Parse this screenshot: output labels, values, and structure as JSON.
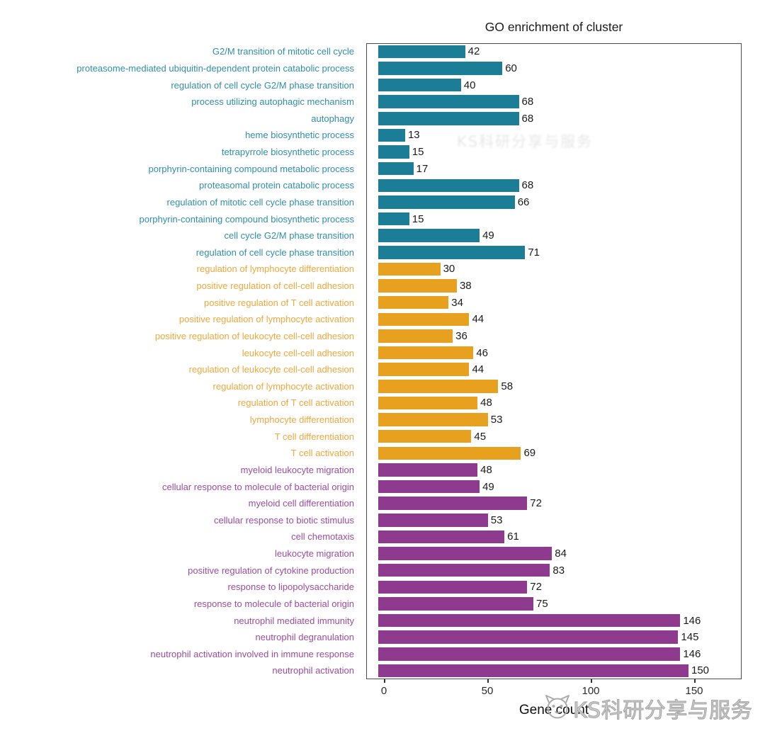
{
  "chart_data": {
    "type": "bar",
    "orientation": "horizontal",
    "title": "GO enrichment of cluster",
    "xlabel": "Gene count",
    "xlim": [
      0,
      165
    ],
    "xticks": [
      0,
      50,
      100,
      150
    ],
    "grid": false,
    "legend": "none",
    "cluster_colors": {
      "teal": {
        "bar": "#1b7e96",
        "label": "#2f8fa9"
      },
      "orange": {
        "bar": "#e7a11e",
        "label": "#f0a73c"
      },
      "purple": {
        "bar": "#8e3a8e",
        "label": "#9d4b9f"
      }
    },
    "items": [
      {
        "label": "G2/M transition of mitotic cell cycle",
        "value": 42,
        "cluster": "teal"
      },
      {
        "label": "proteasome-mediated ubiquitin-dependent protein catabolic process",
        "value": 60,
        "cluster": "teal"
      },
      {
        "label": "regulation of cell cycle G2/M phase transition",
        "value": 40,
        "cluster": "teal"
      },
      {
        "label": "process utilizing autophagic mechanism",
        "value": 68,
        "cluster": "teal"
      },
      {
        "label": "autophagy",
        "value": 68,
        "cluster": "teal"
      },
      {
        "label": "heme biosynthetic process",
        "value": 13,
        "cluster": "teal"
      },
      {
        "label": "tetrapyrrole biosynthetic process",
        "value": 15,
        "cluster": "teal"
      },
      {
        "label": "porphyrin-containing compound metabolic process",
        "value": 17,
        "cluster": "teal"
      },
      {
        "label": "proteasomal protein catabolic process",
        "value": 68,
        "cluster": "teal"
      },
      {
        "label": "regulation of mitotic cell cycle phase transition",
        "value": 66,
        "cluster": "teal"
      },
      {
        "label": "porphyrin-containing compound biosynthetic process",
        "value": 15,
        "cluster": "teal"
      },
      {
        "label": "cell cycle G2/M phase transition",
        "value": 49,
        "cluster": "teal"
      },
      {
        "label": "regulation of cell cycle phase transition",
        "value": 71,
        "cluster": "teal"
      },
      {
        "label": "regulation of lymphocyte differentiation",
        "value": 30,
        "cluster": "orange"
      },
      {
        "label": "positive regulation of cell-cell adhesion",
        "value": 38,
        "cluster": "orange"
      },
      {
        "label": "positive regulation of T cell activation",
        "value": 34,
        "cluster": "orange"
      },
      {
        "label": "positive regulation of lymphocyte activation",
        "value": 44,
        "cluster": "orange"
      },
      {
        "label": "positive regulation of leukocyte cell-cell adhesion",
        "value": 36,
        "cluster": "orange"
      },
      {
        "label": "leukocyte cell-cell adhesion",
        "value": 46,
        "cluster": "orange"
      },
      {
        "label": "regulation of leukocyte cell-cell adhesion",
        "value": 44,
        "cluster": "orange"
      },
      {
        "label": "regulation of lymphocyte activation",
        "value": 58,
        "cluster": "orange"
      },
      {
        "label": "regulation of T cell activation",
        "value": 48,
        "cluster": "orange"
      },
      {
        "label": "lymphocyte differentiation",
        "value": 53,
        "cluster": "orange"
      },
      {
        "label": "T cell differentiation",
        "value": 45,
        "cluster": "orange"
      },
      {
        "label": "T cell activation",
        "value": 69,
        "cluster": "orange"
      },
      {
        "label": "myeloid leukocyte migration",
        "value": 48,
        "cluster": "purple"
      },
      {
        "label": "cellular response to molecule of bacterial origin",
        "value": 49,
        "cluster": "purple"
      },
      {
        "label": "myeloid cell differentiation",
        "value": 72,
        "cluster": "purple"
      },
      {
        "label": "cellular response to biotic stimulus",
        "value": 53,
        "cluster": "purple"
      },
      {
        "label": "cell chemotaxis",
        "value": 61,
        "cluster": "purple"
      },
      {
        "label": "leukocyte migration",
        "value": 84,
        "cluster": "purple"
      },
      {
        "label": "positive regulation of cytokine production",
        "value": 83,
        "cluster": "purple"
      },
      {
        "label": "response to lipopolysaccharide",
        "value": 72,
        "cluster": "purple"
      },
      {
        "label": "response to molecule of bacterial origin",
        "value": 75,
        "cluster": "purple"
      },
      {
        "label": "neutrophil mediated immunity",
        "value": 146,
        "cluster": "purple"
      },
      {
        "label": "neutrophil degranulation",
        "value": 145,
        "cluster": "purple"
      },
      {
        "label": "neutrophil activation involved in immune response",
        "value": 146,
        "cluster": "purple"
      },
      {
        "label": "neutrophil activation",
        "value": 150,
        "cluster": "purple"
      }
    ]
  },
  "watermark": {
    "plot_text": "KS科研分享与服务",
    "footer_text": "KS科研分享与服务",
    "logo_icon": "cat-face-logo-icon",
    "color": "#a3a3a3"
  }
}
